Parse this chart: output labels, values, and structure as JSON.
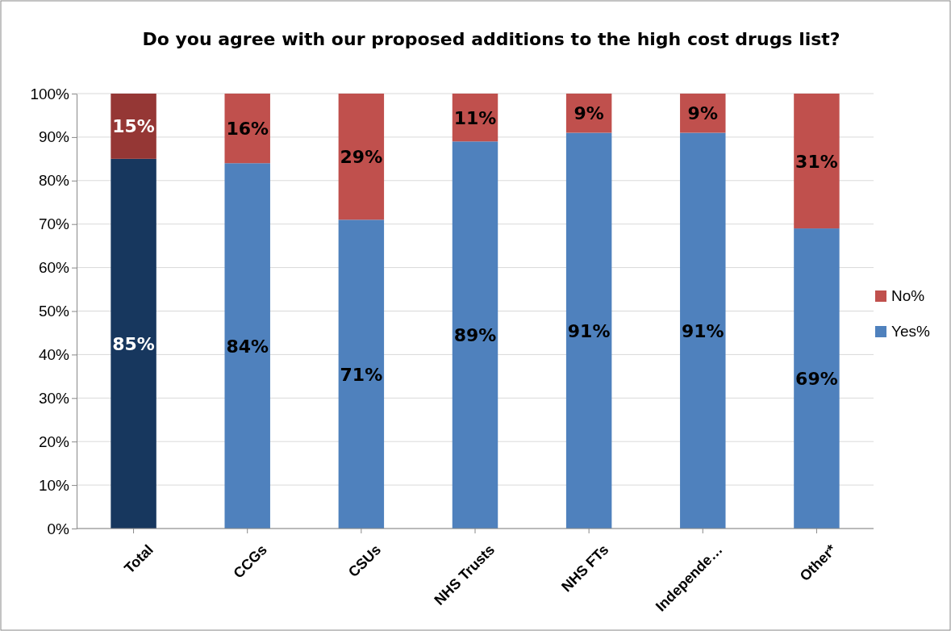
{
  "chart_data": {
    "type": "bar",
    "title": "Do you agree with our proposed additions to the high cost drugs list?",
    "categories": [
      "Total",
      "CCGs",
      "CSUs",
      "NHS Trusts",
      "NHS FTs",
      "Independe…",
      "Other*"
    ],
    "stacked": true,
    "grid": "y",
    "legend": "right",
    "ylim": [
      0,
      100
    ],
    "yticks": [
      {
        "value": 0,
        "label": "0%"
      },
      {
        "value": 10,
        "label": "10%"
      },
      {
        "value": 20,
        "label": "20%"
      },
      {
        "value": 30,
        "label": "30%"
      },
      {
        "value": 40,
        "label": "40%"
      },
      {
        "value": 50,
        "label": "50%"
      },
      {
        "value": 60,
        "label": "60%"
      },
      {
        "value": 70,
        "label": "70%"
      },
      {
        "value": 80,
        "label": "80%"
      },
      {
        "value": 90,
        "label": "90%"
      },
      {
        "value": 100,
        "label": "100%"
      }
    ],
    "series": [
      {
        "name": "Yes%",
        "color": "#4f81bd",
        "colors": [
          "#17375e",
          "#4f81bd",
          "#4f81bd",
          "#4f81bd",
          "#4f81bd",
          "#4f81bd",
          "#4f81bd"
        ],
        "values": [
          85,
          84,
          71,
          89,
          91,
          91,
          69
        ],
        "value_labels": [
          "85%",
          "84%",
          "71%",
          "89%",
          "91%",
          "91%",
          "69%"
        ]
      },
      {
        "name": "No%",
        "color": "#c0504d",
        "colors": [
          "#953735",
          "#c0504d",
          "#c0504d",
          "#c0504d",
          "#c0504d",
          "#c0504d",
          "#c0504d"
        ],
        "values": [
          15,
          16,
          29,
          11,
          9,
          9,
          31
        ],
        "value_labels": [
          "15%",
          "16%",
          "29%",
          "11%",
          "9%",
          "9%",
          "31%"
        ]
      }
    ]
  }
}
